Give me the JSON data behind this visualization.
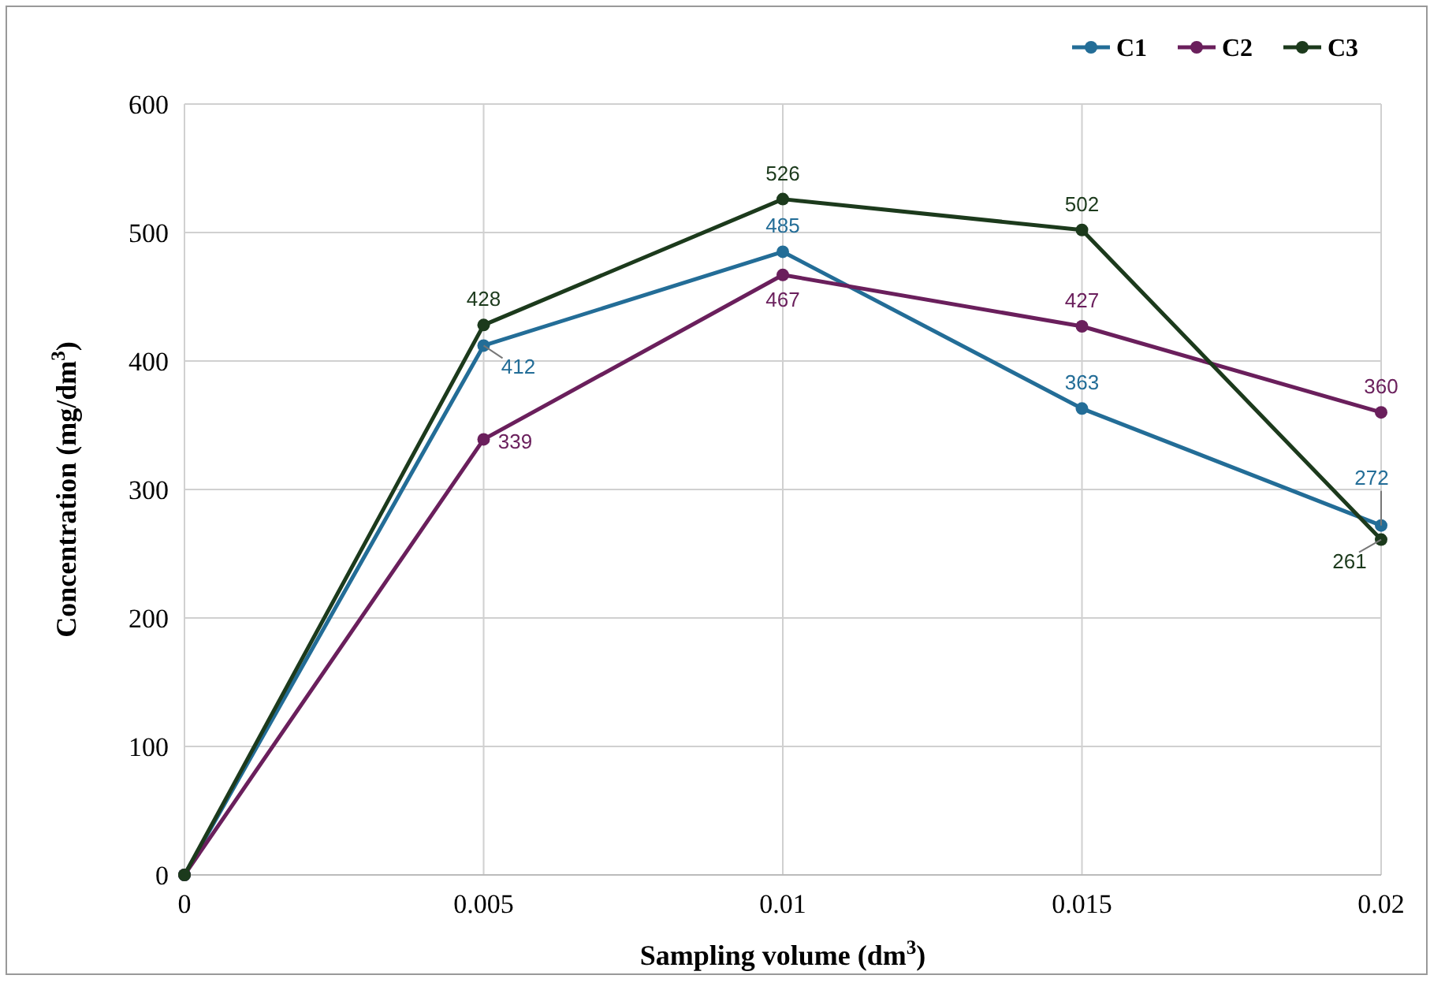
{
  "chart_data": {
    "type": "line",
    "xlabel": "Sampling volume (dm$^{3}$)",
    "ylabel": "Concentration (mg/dm$^{3}$)",
    "x": [
      0,
      0.005,
      0.01,
      0.015,
      0.02
    ],
    "series": [
      {
        "name": "C1",
        "color": "#236d97",
        "values": [
          0,
          412,
          485,
          363,
          272
        ],
        "value_labels": [
          null,
          "412",
          "485",
          "363",
          "272"
        ]
      },
      {
        "name": "C2",
        "color": "#6a1f5c",
        "values": [
          0,
          339,
          467,
          427,
          360
        ],
        "value_labels": [
          null,
          "339",
          "467",
          "427",
          "360"
        ]
      },
      {
        "name": "C3",
        "color": "#1c3a1c",
        "values": [
          0,
          428,
          526,
          502,
          261
        ],
        "value_labels": [
          null,
          "428",
          "526",
          "502",
          "261"
        ]
      }
    ],
    "xlim": [
      0,
      0.02
    ],
    "xticks": [
      0,
      0.005,
      0.01,
      0.015,
      0.02
    ],
    "ylim": [
      0,
      600
    ],
    "yticks": [
      0,
      100,
      200,
      300,
      400,
      500,
      600
    ],
    "grid": true,
    "legend": "top right",
    "marker": "circle",
    "line_style": "solid"
  }
}
